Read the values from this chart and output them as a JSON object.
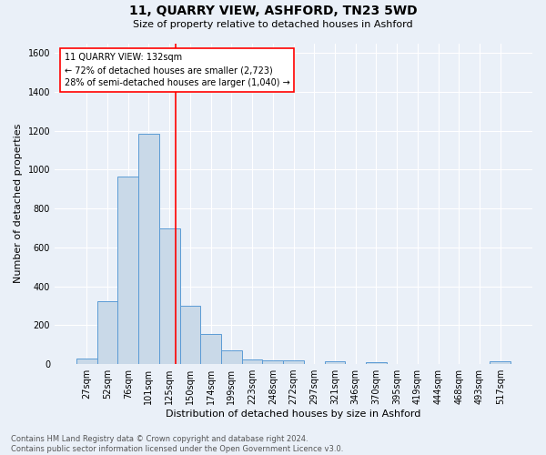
{
  "title": "11, QUARRY VIEW, ASHFORD, TN23 5WD",
  "subtitle": "Size of property relative to detached houses in Ashford",
  "xlabel": "Distribution of detached houses by size in Ashford",
  "ylabel": "Number of detached properties",
  "categories": [
    "27sqm",
    "52sqm",
    "76sqm",
    "101sqm",
    "125sqm",
    "150sqm",
    "174sqm",
    "199sqm",
    "223sqm",
    "248sqm",
    "272sqm",
    "297sqm",
    "321sqm",
    "346sqm",
    "370sqm",
    "395sqm",
    "419sqm",
    "444sqm",
    "468sqm",
    "493sqm",
    "517sqm"
  ],
  "values": [
    30,
    325,
    965,
    1185,
    700,
    300,
    155,
    72,
    25,
    18,
    18,
    0,
    15,
    0,
    12,
    0,
    0,
    0,
    0,
    0,
    15
  ],
  "bar_color": "#c9d9e8",
  "bar_edge_color": "#5b9bd5",
  "annotation_line_color": "red",
  "annotation_box_text": "11 QUARRY VIEW: 132sqm\n← 72% of detached houses are smaller (2,723)\n28% of semi-detached houses are larger (1,040) →",
  "ylim": [
    0,
    1650
  ],
  "yticks": [
    0,
    200,
    400,
    600,
    800,
    1000,
    1200,
    1400,
    1600
  ],
  "footer_text": "Contains HM Land Registry data © Crown copyright and database right 2024.\nContains public sector information licensed under the Open Government Licence v3.0.",
  "background_color": "#eaf0f8",
  "bar_width": 1.0,
  "red_line_index": 4.28,
  "title_fontsize": 10,
  "subtitle_fontsize": 8,
  "ylabel_fontsize": 8,
  "xlabel_fontsize": 8,
  "tick_fontsize": 7,
  "footer_fontsize": 6,
  "annot_fontsize": 7
}
